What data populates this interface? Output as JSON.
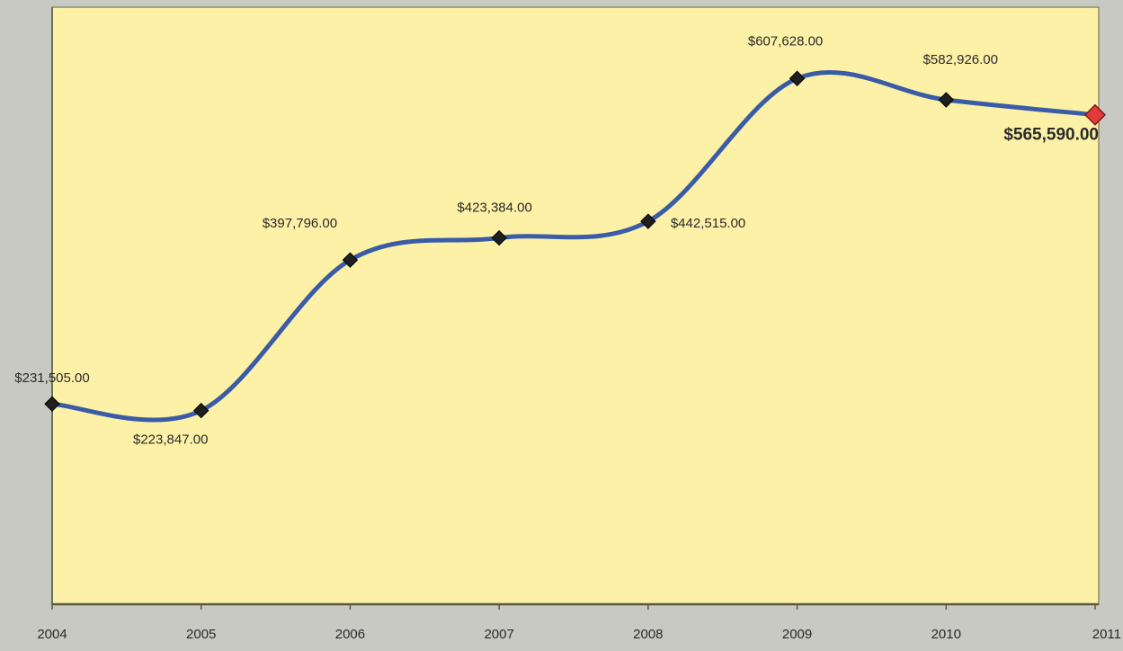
{
  "chart_data": {
    "type": "line",
    "title": "",
    "xlabel": "",
    "ylabel": "",
    "categories": [
      "2004",
      "2005",
      "2006",
      "2007",
      "2008",
      "2009",
      "2010",
      "2011"
    ],
    "series": [
      {
        "values": [
          231505,
          223847,
          397796,
          423384,
          442515,
          607628,
          582926,
          565590
        ],
        "labels": [
          "$231,505.00",
          "$223,847.00",
          "$397,796.00",
          "$423,384.00",
          "$442,515.00",
          "$607,628.00",
          "$582,926.00",
          "$565,590.00"
        ]
      }
    ],
    "ylim": [
      0,
      690000
    ],
    "smooth": true,
    "grid": false,
    "legend": "none",
    "colors": {
      "plot_background": "#fdf1a8",
      "outer_background": "#c9c9c4",
      "line": "#3a5ca7",
      "marker": "#1f1f1f",
      "highlight_marker": "#e23a3a",
      "axis": "#5a5a3a",
      "text": "#2a2a2a"
    },
    "highlight_index": 7
  }
}
